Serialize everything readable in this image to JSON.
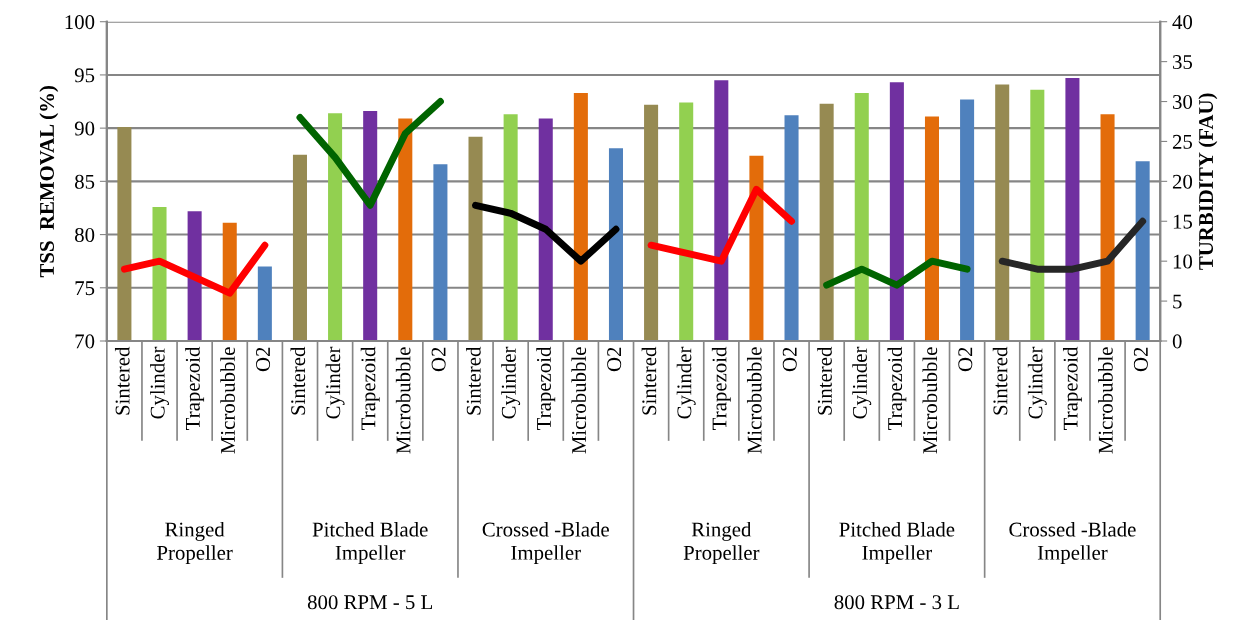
{
  "chart_data": {
    "type": "bar",
    "ylabel": "TSS  REMOVAL (%)",
    "y2label": "TURBIDITY (FAU)",
    "categories": [
      "Sintered",
      "Cylinder",
      "Trapezoid",
      "Microbubble",
      "O2",
      "Sintered",
      "Cylinder",
      "Trapezoid",
      "Microbubble",
      "O2",
      "Sintered",
      "Cylinder",
      "Trapezoid",
      "Microbubble",
      "O2",
      "Sintered",
      "Cylinder",
      "Trapezoid",
      "Microbubble",
      "O2",
      "Sintered",
      "Cylinder",
      "Trapezoid",
      "Microbubble",
      "O2",
      "Sintered",
      "Cylinder",
      "Trapezoid",
      "Microbubble",
      "O2"
    ],
    "annotations": [
      "Ringed\nPropeller",
      "Pitched Blade\nImpeller",
      "Crossed -Blade\nImpeller",
      "Ringed\nPropeller",
      "Pitched Blade\nImpeller",
      "Crossed -Blade\nImpeller",
      "800 RPM - 5 L",
      "800 RPM - 3 L"
    ],
    "series": [
      {
        "values": [
          90.1,
          82.6,
          82.2,
          81.1,
          77.0,
          87.5,
          91.4,
          91.6,
          90.9,
          86.6,
          89.2,
          91.3,
          90.9,
          93.3,
          88.1,
          92.2,
          92.4,
          94.5,
          87.4,
          91.2,
          92.3,
          93.3,
          94.3,
          91.1,
          92.7,
          94.1,
          93.6,
          94.7,
          91.3,
          86.9
        ],
        "colors": [
          "#968a52",
          "#92d050",
          "#7030a0",
          "#e36c0a",
          "#4f81bd",
          "#968a52",
          "#92d050",
          "#7030a0",
          "#e36c0a",
          "#4f81bd",
          "#968a52",
          "#92d050",
          "#7030a0",
          "#e36c0a",
          "#4f81bd",
          "#968a52",
          "#92d050",
          "#7030a0",
          "#e36c0a",
          "#4f81bd",
          "#968a52",
          "#92d050",
          "#7030a0",
          "#e36c0a",
          "#4f81bd",
          "#968a52",
          "#92d050",
          "#7030a0",
          "#e36c0a",
          "#4f81bd"
        ]
      },
      {
        "type": "line",
        "axis": "y2",
        "color": "#ff0000",
        "values": [
          9,
          10,
          8,
          6,
          12,
          null,
          null,
          null,
          null,
          null,
          null,
          null,
          null,
          null,
          null,
          null,
          null,
          null,
          null,
          null,
          null,
          null,
          null,
          null,
          null,
          null,
          null,
          null,
          null,
          null
        ]
      },
      {
        "type": "line",
        "axis": "y2",
        "color": "#006400",
        "values": [
          null,
          null,
          null,
          null,
          null,
          28,
          23,
          17,
          26,
          30,
          null,
          null,
          null,
          null,
          null,
          null,
          null,
          null,
          null,
          null,
          null,
          null,
          null,
          null,
          null,
          null,
          null,
          null,
          null,
          null
        ]
      },
      {
        "type": "line",
        "axis": "y2",
        "color": "#000000",
        "values": [
          null,
          null,
          null,
          null,
          null,
          null,
          null,
          null,
          null,
          null,
          17,
          16,
          14,
          10,
          14,
          null,
          null,
          null,
          null,
          null,
          null,
          null,
          null,
          null,
          null,
          null,
          null,
          null,
          null,
          null
        ]
      },
      {
        "type": "line",
        "axis": "y2",
        "color": "#ff0000",
        "values": [
          null,
          null,
          null,
          null,
          null,
          null,
          null,
          null,
          null,
          null,
          null,
          null,
          null,
          null,
          null,
          12,
          11,
          10,
          19,
          15,
          null,
          null,
          null,
          null,
          null,
          null,
          null,
          null,
          null,
          null
        ]
      },
      {
        "type": "line",
        "axis": "y2",
        "color": "#006400",
        "values": [
          null,
          null,
          null,
          null,
          null,
          null,
          null,
          null,
          null,
          null,
          null,
          null,
          null,
          null,
          null,
          null,
          null,
          null,
          null,
          null,
          7,
          9,
          7,
          10,
          9,
          null,
          null,
          null,
          null,
          null
        ]
      },
      {
        "type": "line",
        "axis": "y2",
        "color": "#262626",
        "values": [
          null,
          null,
          null,
          null,
          null,
          null,
          null,
          null,
          null,
          null,
          null,
          null,
          null,
          null,
          null,
          null,
          null,
          null,
          null,
          null,
          null,
          null,
          null,
          null,
          null,
          10,
          9,
          9,
          10,
          15
        ]
      }
    ],
    "ylim": [
      70,
      100
    ],
    "yticks": [
      70,
      75,
      80,
      85,
      90,
      95,
      100
    ],
    "y2lim": [
      0,
      40
    ],
    "y2ticks": [
      0,
      5,
      10,
      15,
      20,
      25,
      30,
      35,
      40
    ],
    "grid": "y",
    "legend": false
  }
}
